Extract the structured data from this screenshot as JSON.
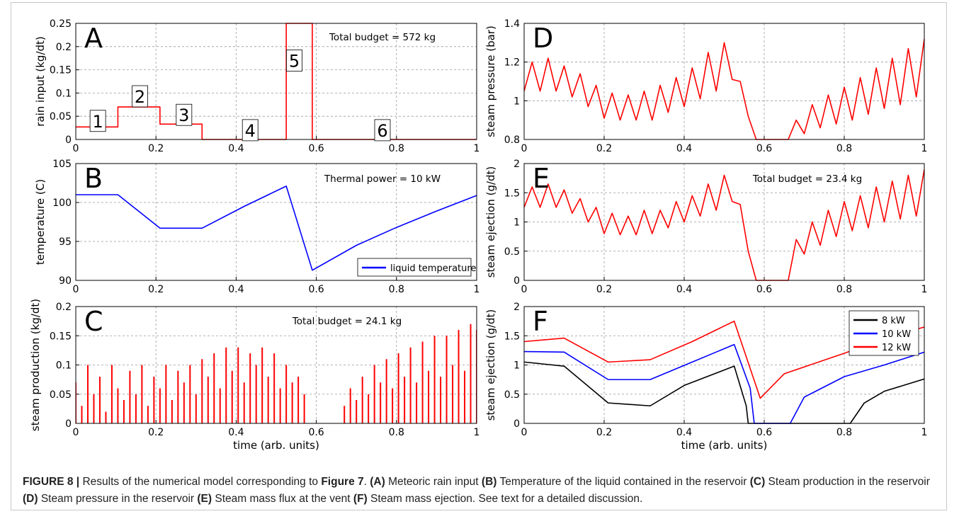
{
  "chart_data": [
    {
      "type": "line",
      "panel_label": "A",
      "ylabel": "rain input (kg/dt)",
      "annotation": "Total budget = 572 kg",
      "box_labels": [
        "1",
        "2",
        "3",
        "4",
        "5",
        "6"
      ],
      "x": [
        0,
        0.105,
        0.105,
        0.21,
        0.21,
        0.315,
        0.315,
        0.525,
        0.525,
        0.59,
        0.59,
        1
      ],
      "values": [
        0.027,
        0.027,
        0.07,
        0.07,
        0.033,
        0.033,
        0,
        0,
        0.25,
        0.25,
        0,
        0
      ],
      "color": "#ff0000",
      "xlim": [
        0,
        1
      ],
      "xticks": [
        0,
        0.2,
        0.4,
        0.6,
        0.8,
        1
      ],
      "ylim": [
        0,
        0.25
      ],
      "yticks": [
        0,
        0.05,
        0.1,
        0.15,
        0.2,
        0.25
      ],
      "grid": true
    },
    {
      "type": "line",
      "panel_label": "B",
      "ylabel": "temperature (C)",
      "annotation": "Thermal power = 10 kW",
      "series": [
        {
          "name": "liquid temperature",
          "color": "#0000ff",
          "x": [
            0,
            0.105,
            0.21,
            0.315,
            0.42,
            0.525,
            0.59,
            0.7,
            0.8,
            0.9,
            1
          ],
          "values": [
            101,
            101,
            96.7,
            96.7,
            99.5,
            102.1,
            91.3,
            94.5,
            96.8,
            98.9,
            100.9
          ]
        }
      ],
      "legend": "lower right",
      "xlim": [
        0,
        1
      ],
      "xticks": [
        0,
        0.2,
        0.4,
        0.6,
        0.8,
        1
      ],
      "ylim": [
        90,
        105
      ],
      "yticks": [
        90,
        95,
        100,
        105
      ],
      "grid": true
    },
    {
      "type": "bar",
      "panel_label": "C",
      "ylabel": "steam production (kg/dt)",
      "xlabel": "time (arb. units)",
      "annotation": "Total budget = 24.1 kg",
      "x": [
        0,
        0.015,
        0.03,
        0.045,
        0.06,
        0.075,
        0.09,
        0.105,
        0.12,
        0.135,
        0.15,
        0.165,
        0.18,
        0.195,
        0.21,
        0.225,
        0.24,
        0.255,
        0.27,
        0.285,
        0.3,
        0.315,
        0.33,
        0.345,
        0.36,
        0.375,
        0.39,
        0.405,
        0.42,
        0.435,
        0.45,
        0.465,
        0.48,
        0.495,
        0.51,
        0.525,
        0.54,
        0.555,
        0.57,
        0.67,
        0.685,
        0.7,
        0.715,
        0.73,
        0.745,
        0.76,
        0.775,
        0.79,
        0.805,
        0.82,
        0.835,
        0.85,
        0.865,
        0.88,
        0.895,
        0.91,
        0.925,
        0.94,
        0.955,
        0.97,
        0.985,
        1
      ],
      "values": [
        0.07,
        0.03,
        0.1,
        0.05,
        0.08,
        0.02,
        0.1,
        0.06,
        0.04,
        0.09,
        0.05,
        0.1,
        0.03,
        0.08,
        0.06,
        0.1,
        0.04,
        0.09,
        0.07,
        0.1,
        0.05,
        0.11,
        0.08,
        0.12,
        0.06,
        0.13,
        0.09,
        0.13,
        0.07,
        0.12,
        0.1,
        0.13,
        0.08,
        0.12,
        0.06,
        0.1,
        0.07,
        0.08,
        0.05,
        0.03,
        0.06,
        0.04,
        0.08,
        0.05,
        0.1,
        0.07,
        0.11,
        0.06,
        0.12,
        0.08,
        0.13,
        0.07,
        0.14,
        0.09,
        0.15,
        0.08,
        0.15,
        0.1,
        0.16,
        0.09,
        0.17,
        0.16
      ],
      "color": "#ff0000",
      "xlim": [
        0,
        1
      ],
      "xticks": [
        0,
        0.2,
        0.4,
        0.6,
        0.8,
        1
      ],
      "ylim": [
        0,
        0.2
      ],
      "yticks": [
        0,
        0.05,
        0.1,
        0.15,
        0.2
      ],
      "grid": true
    },
    {
      "type": "line",
      "panel_label": "D",
      "ylabel": "steam pressure (bar)",
      "x": [
        0,
        0.02,
        0.04,
        0.06,
        0.08,
        0.1,
        0.12,
        0.14,
        0.16,
        0.18,
        0.2,
        0.22,
        0.24,
        0.26,
        0.28,
        0.3,
        0.32,
        0.34,
        0.36,
        0.38,
        0.4,
        0.42,
        0.44,
        0.46,
        0.48,
        0.5,
        0.52,
        0.54,
        0.56,
        0.58,
        0.6,
        0.62,
        0.64,
        0.66,
        0.68,
        0.7,
        0.72,
        0.74,
        0.76,
        0.78,
        0.8,
        0.82,
        0.84,
        0.86,
        0.88,
        0.9,
        0.92,
        0.94,
        0.96,
        0.98,
        1
      ],
      "values": [
        1.05,
        1.2,
        1.05,
        1.22,
        1.05,
        1.18,
        1.02,
        1.14,
        0.97,
        1.08,
        0.91,
        1.04,
        0.9,
        1.03,
        0.9,
        1.05,
        0.9,
        1.08,
        0.94,
        1.12,
        0.97,
        1.17,
        1.01,
        1.25,
        1.05,
        1.3,
        1.11,
        1.1,
        0.92,
        0.8,
        0.8,
        0.8,
        0.8,
        0.8,
        0.9,
        0.83,
        0.98,
        0.86,
        1.03,
        0.88,
        1.07,
        0.9,
        1.12,
        0.93,
        1.17,
        0.96,
        1.22,
        0.98,
        1.27,
        1.02,
        1.32
      ],
      "color": "#ff0000",
      "xlim": [
        0,
        1
      ],
      "xticks": [
        0,
        0.2,
        0.4,
        0.6,
        0.8,
        1
      ],
      "ylim": [
        0.8,
        1.4
      ],
      "yticks": [
        0.8,
        1,
        1.2,
        1.4
      ],
      "grid": true
    },
    {
      "type": "line",
      "panel_label": "E",
      "ylabel": "steam ejection (g/dt)",
      "annotation": "Total budget = 23.4 kg",
      "x": [
        0,
        0.02,
        0.04,
        0.06,
        0.08,
        0.1,
        0.12,
        0.14,
        0.16,
        0.18,
        0.2,
        0.22,
        0.24,
        0.26,
        0.28,
        0.3,
        0.32,
        0.34,
        0.36,
        0.38,
        0.4,
        0.42,
        0.44,
        0.46,
        0.48,
        0.5,
        0.52,
        0.54,
        0.56,
        0.58,
        0.6,
        0.62,
        0.64,
        0.66,
        0.68,
        0.7,
        0.72,
        0.74,
        0.76,
        0.78,
        0.8,
        0.82,
        0.84,
        0.86,
        0.88,
        0.9,
        0.92,
        0.94,
        0.96,
        0.98,
        1
      ],
      "values": [
        1.25,
        1.6,
        1.25,
        1.65,
        1.25,
        1.55,
        1.15,
        1.4,
        1.0,
        1.25,
        0.8,
        1.15,
        0.78,
        1.1,
        0.78,
        1.2,
        0.8,
        1.2,
        0.9,
        1.35,
        1.0,
        1.45,
        1.1,
        1.65,
        1.2,
        1.8,
        1.35,
        1.3,
        0.5,
        0,
        0,
        0,
        0,
        0,
        0.7,
        0.45,
        1.0,
        0.6,
        1.2,
        0.75,
        1.35,
        0.85,
        1.45,
        0.9,
        1.6,
        1.0,
        1.7,
        1.05,
        1.8,
        1.1,
        1.9
      ],
      "color": "#ff0000",
      "xlim": [
        0,
        1
      ],
      "xticks": [
        0,
        0.2,
        0.4,
        0.6,
        0.8,
        1
      ],
      "ylim": [
        0,
        2
      ],
      "yticks": [
        0,
        0.5,
        1,
        1.5,
        2
      ],
      "grid": true
    },
    {
      "type": "line",
      "panel_label": "F",
      "ylabel": "steam ejection (g/dt)",
      "xlabel": "time (arb. units)",
      "series": [
        {
          "name": "8 kW",
          "color": "#000000",
          "x": [
            0,
            0.1,
            0.21,
            0.315,
            0.4,
            0.525,
            0.555,
            0.56,
            0.6,
            0.8,
            0.815,
            0.85,
            0.9,
            1
          ],
          "values": [
            1.05,
            0.98,
            0.35,
            0.3,
            0.65,
            0.98,
            0.3,
            0,
            0,
            0,
            0,
            0.35,
            0.55,
            0.76
          ]
        },
        {
          "name": "10 kW",
          "color": "#0000ff",
          "x": [
            0,
            0.1,
            0.21,
            0.315,
            0.42,
            0.525,
            0.565,
            0.575,
            0.665,
            0.7,
            0.8,
            0.9,
            1
          ],
          "values": [
            1.23,
            1.22,
            0.75,
            0.75,
            1.05,
            1.35,
            0.6,
            0,
            0,
            0.45,
            0.8,
            1.0,
            1.22
          ]
        },
        {
          "name": "12 kW",
          "color": "#ff0000",
          "x": [
            0,
            0.1,
            0.21,
            0.315,
            0.42,
            0.525,
            0.59,
            0.65,
            0.8,
            0.9,
            1
          ],
          "values": [
            1.4,
            1.46,
            1.05,
            1.09,
            1.4,
            1.75,
            0.43,
            0.85,
            1.2,
            1.45,
            1.65
          ]
        }
      ],
      "legend": "upper right",
      "xlim": [
        0,
        1
      ],
      "xticks": [
        0,
        0.2,
        0.4,
        0.6,
        0.8,
        1
      ],
      "ylim": [
        0,
        2
      ],
      "yticks": [
        0,
        0.5,
        1,
        1.5,
        2
      ],
      "grid": true
    }
  ],
  "caption": {
    "parts": [
      {
        "text": "FIGURE 8 |",
        "bold": true
      },
      {
        "text": " Results of the numerical model corresponding to ",
        "bold": false
      },
      {
        "text": "Figure 7",
        "bold": true
      },
      {
        "text": ". ",
        "bold": false
      },
      {
        "text": "(A)",
        "bold": true
      },
      {
        "text": " Meteoric rain input ",
        "bold": false
      },
      {
        "text": "(B)",
        "bold": true
      },
      {
        "text": " Temperature of the liquid contained in the reservoir ",
        "bold": false
      },
      {
        "text": "(C)",
        "bold": true
      },
      {
        "text": " Steam production in the reservoir ",
        "bold": false
      },
      {
        "text": "(D)",
        "bold": true
      },
      {
        "text": " Steam pressure in the reservoir ",
        "bold": false
      },
      {
        "text": "(E)",
        "bold": true
      },
      {
        "text": " Steam mass flux at the vent ",
        "bold": false
      },
      {
        "text": "(F)",
        "bold": true
      },
      {
        "text": " Steam mass ejection. See text for a detailed discussion.",
        "bold": false
      }
    ]
  }
}
